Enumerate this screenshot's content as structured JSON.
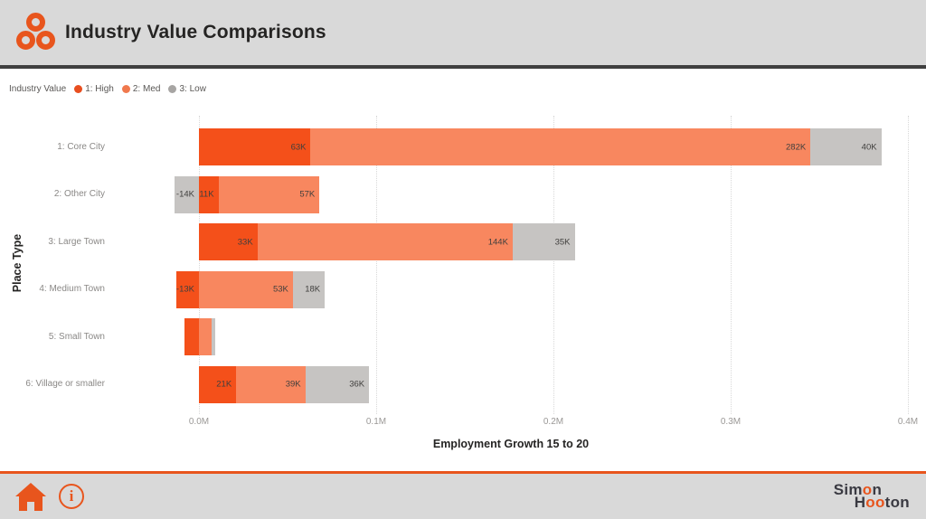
{
  "header": {
    "title": "Industry Value Comparisons"
  },
  "legend": {
    "title": "Industry Value",
    "items": [
      {
        "label": "1: High",
        "color": "#e84e1f"
      },
      {
        "label": "2: Med",
        "color": "#f0794d"
      },
      {
        "label": "3: Low",
        "color": "#a7a5a3"
      }
    ]
  },
  "chart_data": {
    "type": "bar",
    "orientation": "horizontal-stacked",
    "title": "Industry Value Comparisons",
    "xlabel": "Employment Growth 15 to 20",
    "ylabel": "Place Type",
    "units": "K",
    "categories": [
      "1: Core City",
      "2: Other City",
      "3: Large Town",
      "4: Medium Town",
      "5: Small Town",
      "6: Village or smaller"
    ],
    "series": [
      {
        "name": "1: High",
        "color": "#f4501a",
        "values": [
          63,
          11,
          33,
          -13,
          -8,
          21
        ]
      },
      {
        "name": "2: Med",
        "color": "#f8875f",
        "values": [
          282,
          57,
          144,
          53,
          7,
          39
        ]
      },
      {
        "name": "3: Low",
        "color": "#c6c4c2",
        "values": [
          40,
          -14,
          35,
          18,
          2,
          36
        ]
      }
    ],
    "x_ticks": [
      "0.0M",
      "0.1M",
      "0.2M",
      "0.3M",
      "0.4M"
    ],
    "x_tick_values_k": [
      0,
      100,
      200,
      300,
      400
    ],
    "xlim_k": [
      -25,
      410
    ],
    "grid": "vertical-dotted",
    "legend_position": "top-left",
    "data_labels": "inside-end, shown when segment wide enough; e.g. 63K, 282K, 40K, -14K, 11K, 57K, 33K, 144K, 35K, -13K, 53K, 18K, 21K, 39K, 36K"
  },
  "footer": {
    "home_icon": "home",
    "info_icon": "info",
    "brand": {
      "line1_pre": "Sim",
      "line1_o": "o",
      "line1_post": "n",
      "line2_pre": "H",
      "line2_o": "oo",
      "line2_post": "ton"
    }
  },
  "colors": {
    "accent": "#e8551d",
    "header_bg": "#d9d9d9",
    "header_border": "#3f3f3f",
    "title_text": "#252423",
    "axis_text": "#9a9896",
    "category_text": "#8a8886",
    "value_label_text": "#403f3d"
  }
}
